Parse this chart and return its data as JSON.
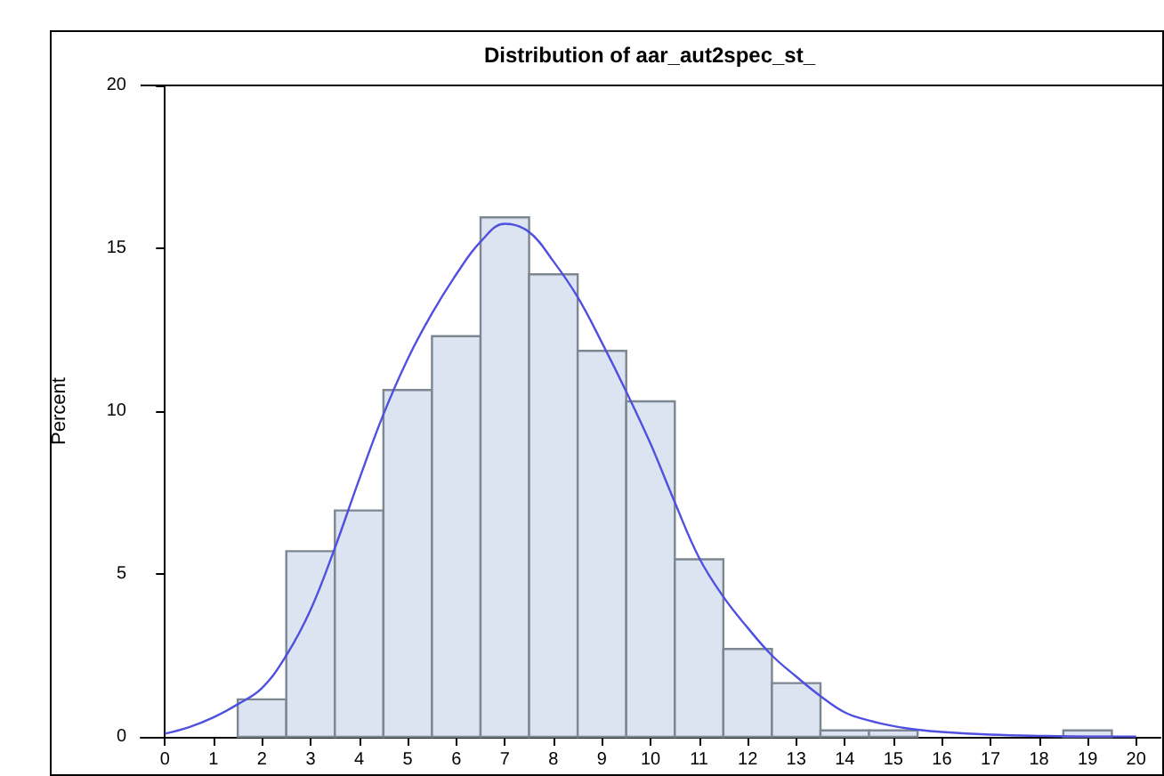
{
  "chart_data": {
    "type": "histogram",
    "title": "Distribution of aar_aut2spec_st_",
    "ylabel": "Percent",
    "bins": [
      1.5,
      2.5,
      3.5,
      4.5,
      5.5,
      6.5,
      7.5,
      8.5,
      9.5,
      10.5,
      11.5,
      12.5,
      13.5,
      14.5,
      15.5,
      16.5,
      17.5,
      18.5,
      19.5
    ],
    "values": [
      1.15,
      5.7,
      6.95,
      10.65,
      12.3,
      15.95,
      14.2,
      11.85,
      10.3,
      5.45,
      2.7,
      1.65,
      0.2,
      0.2,
      0,
      0,
      0,
      0.2
    ],
    "color": "#dbe4f0",
    "series": [
      {
        "type": "line",
        "color": "#5050e0",
        "x": [
          0,
          0.5,
          1,
          1.5,
          2,
          2.5,
          3,
          3.5,
          4,
          4.5,
          5,
          5.5,
          6,
          6.5,
          7,
          7.5,
          8,
          8.5,
          9,
          9.5,
          10,
          10.5,
          11,
          11.5,
          12,
          12.5,
          13,
          13.5,
          14,
          14.5,
          15,
          15.5,
          16,
          17,
          18,
          19,
          20
        ],
        "values": [
          0.1,
          0.3,
          0.6,
          1.0,
          1.5,
          2.5,
          3.9,
          5.8,
          7.9,
          9.9,
          11.6,
          13.0,
          14.2,
          15.2,
          15.75,
          15.5,
          14.6,
          13.5,
          12.1,
          10.6,
          9.0,
          7.2,
          5.5,
          4.3,
          3.35,
          2.5,
          1.85,
          1.25,
          0.75,
          0.5,
          0.33,
          0.22,
          0.15,
          0.07,
          0.03,
          0.01,
          0.01
        ]
      }
    ],
    "xlim": [
      -0.5,
      20.5
    ],
    "xticks": [
      0,
      1,
      2,
      3,
      4,
      5,
      6,
      7,
      8,
      9,
      10,
      11,
      12,
      13,
      14,
      15,
      16,
      17,
      18,
      19,
      20
    ],
    "ylim": [
      0,
      20
    ],
    "yticks": [
      0,
      5,
      10,
      15,
      20
    ],
    "grid": false,
    "legend": false,
    "marker": "none",
    "line_style": "solid"
  }
}
